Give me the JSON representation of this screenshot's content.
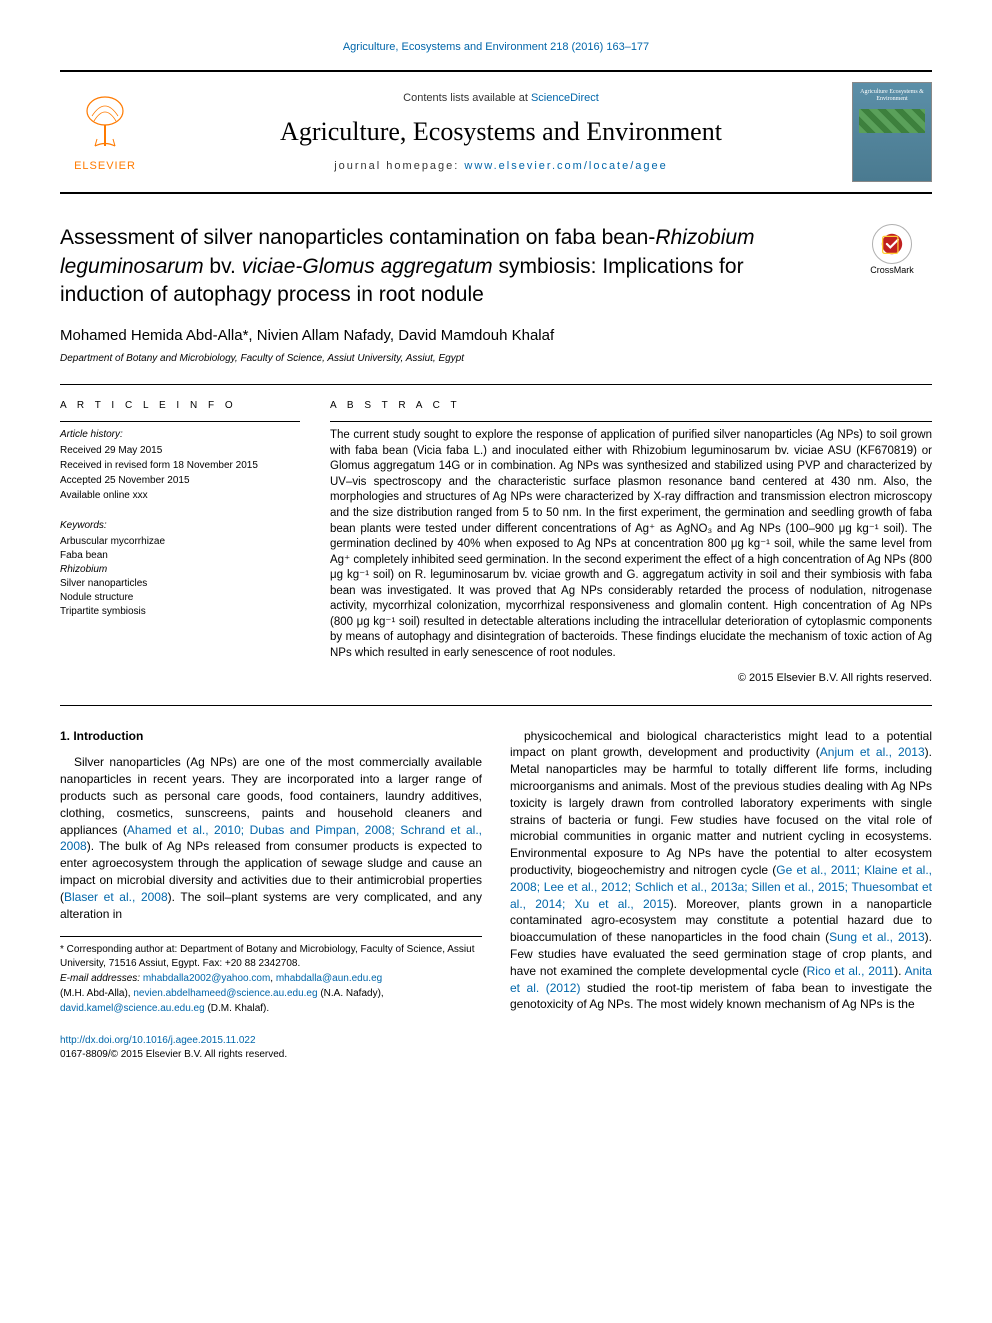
{
  "header": {
    "citation": "Agriculture, Ecosystems and Environment 218 (2016) 163–177",
    "contents_prefix": "Contents lists available at ",
    "contents_link": "ScienceDirect",
    "journal_title": "Agriculture, Ecosystems and Environment",
    "homepage_prefix": "journal homepage: ",
    "homepage_link": "www.elsevier.com/locate/agee",
    "publisher": "ELSEVIER",
    "cover_title": "Agriculture Ecosystems & Environment"
  },
  "article": {
    "title_html": "Assessment of silver nanoparticles contamination on faba bean-<em>Rhizobium leguminosarum</em> bv. <em>viciae-Glomus aggregatum</em> symbiosis: Implications for induction of autophagy process in root nodule",
    "crossmark_label": "CrossMark",
    "authors": "Mohamed Hemida Abd-Alla*, Nivien Allam Nafady, David Mamdouh Khalaf",
    "affiliation": "Department of Botany and Microbiology, Faculty of Science, Assiut University, Assiut, Egypt"
  },
  "info": {
    "heading": "A R T I C L E   I N F O",
    "history_label": "Article history:",
    "received": "Received 29 May 2015",
    "revised": "Received in revised form 18 November 2015",
    "accepted": "Accepted 25 November 2015",
    "online": "Available online xxx",
    "keywords_label": "Keywords:",
    "keywords": [
      "Arbuscular mycorrhizae",
      "Faba bean",
      "Rhizobium",
      "Silver nanoparticles",
      "Nodule structure",
      "Tripartite symbiosis"
    ]
  },
  "abstract": {
    "heading": "A B S T R A C T",
    "text": "The current study sought to explore the response of application of purified silver nanoparticles (Ag NPs) to soil grown with faba bean (Vicia faba L.) and inoculated either with Rhizobium leguminosarum bv. viciae ASU (KF670819) or Glomus aggregatum 14G or in combination. Ag NPs was synthesized and stabilized using PVP and characterized by UV–vis spectroscopy and the characteristic surface plasmon resonance band centered at 430 nm. Also, the morphologies and structures of Ag NPs were characterized by X-ray diffraction and transmission electron microscopy and the size distribution ranged from 5 to 50 nm. In the first experiment, the germination and seedling growth of faba bean plants were tested under different concentrations of Ag⁺ as AgNO₃ and Ag NPs (100–900 μg kg⁻¹ soil). The germination declined by 40% when exposed to Ag NPs at concentration 800 μg kg⁻¹ soil, while the same level from Ag⁺ completely inhibited seed germination. In the second experiment the effect of a high concentration of Ag NPs (800 μg kg⁻¹ soil) on R. leguminosarum bv. viciae growth and G. aggregatum activity in soil and their symbiosis with faba bean was investigated. It was proved that Ag NPs considerably retarded the process of nodulation, nitrogenase activity, mycorrhizal colonization, mycorrhizal responsiveness and glomalin content. High concentration of Ag NPs (800 μg kg⁻¹ soil) resulted in detectable alterations including the intracellular deterioration of cytoplasmic components by means of autophagy and disintegration of bacteroids. These findings elucidate the mechanism of toxic action of Ag NPs which resulted in early senescence of root nodules.",
    "copyright": "© 2015 Elsevier B.V. All rights reserved."
  },
  "body": {
    "section1_heading": "1. Introduction",
    "para1_html": "Silver nanoparticles (Ag NPs) are one of the most commercially available nanoparticles in recent years. They are incorporated into a larger range of products such as personal care goods, food containers, laundry additives, clothing, cosmetics, sunscreens, paints and household cleaners and appliances (<a href='#'>Ahamed et al., 2010; Dubas and Pimpan, 2008; Schrand et al., 2008</a>). The bulk of Ag NPs released from consumer products is expected to enter agroecosystem through the application of sewage sludge and cause an impact on microbial diversity and activities due to their antimicrobial properties (<a href='#'>Blaser et al., 2008</a>). The soil–plant systems are very complicated, and any alteration in",
    "para2_html": "physicochemical and biological characteristics might lead to a potential impact on plant growth, development and productivity (<a href='#'>Anjum et al., 2013</a>). Metal nanoparticles may be harmful to totally different life forms, including microorganisms and animals. Most of the previous studies dealing with Ag NPs toxicity is largely drawn from controlled laboratory experiments with single strains of bacteria or fungi. Few studies have focused on the vital role of microbial communities in organic matter and nutrient cycling in ecosystems. Environmental exposure to Ag NPs have the potential to alter ecosystem productivity, biogeochemistry and nitrogen cycle (<a href='#'>Ge et al., 2011; Klaine et al., 2008; Lee et al., 2012; Schlich et al., 2013a; Sillen et al., 2015; Thuesombat et al., 2014; Xu et al., 2015</a>). Moreover, plants grown in a nanoparticle contaminated agro-ecosystem may constitute a potential hazard due to bioaccumulation of these nanoparticles in the food chain (<a href='#'>Sung et al., 2013</a>). Few studies have evaluated the seed germination stage of crop plants, and have not examined the complete developmental cycle (<a href='#'>Rico et al., 2011</a>). <a href='#'>Anita et al. (2012)</a> studied the root-tip meristem of faba bean to investigate the genotoxicity of Ag NPs. The most widely known mechanism of Ag NPs is the"
  },
  "footnote": {
    "corr": "* Corresponding author at: Department of Botany and Microbiology, Faculty of Science, Assiut University, 71516 Assiut, Egypt. Fax: +20 88 2342708.",
    "email_label": "E-mail addresses:",
    "email1a": "mhabdalla2002@yahoo.com",
    "email1b": "mhabdalla@aun.edu.eg",
    "name1": "(M.H. Abd-Alla),",
    "email2": "nevien.abdelhameed@science.au.edu.eg",
    "name2": "(N.A. Nafady),",
    "email3": "david.kamel@science.au.edu.eg",
    "name3": "(D.M. Khalaf)."
  },
  "footer": {
    "doi": "http://dx.doi.org/10.1016/j.agee.2015.11.022",
    "issn": "0167-8809/© 2015 Elsevier B.V. All rights reserved."
  },
  "colors": {
    "link": "#0066aa",
    "elsevier_orange": "#ff7a00",
    "cover_bg": "#5b8fa8",
    "cover_green": "#5aa05a"
  }
}
